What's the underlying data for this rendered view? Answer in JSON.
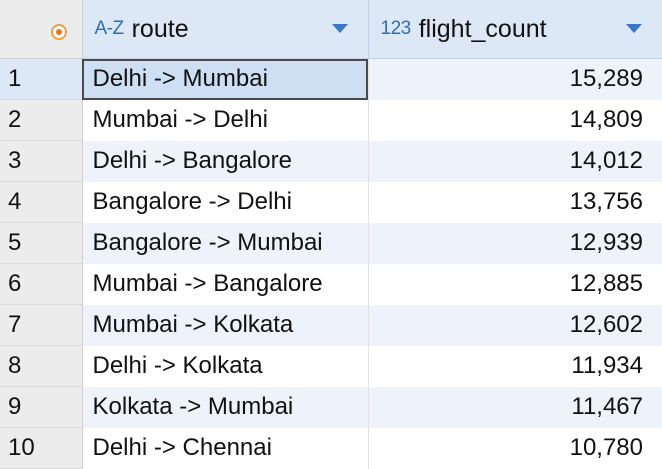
{
  "table": {
    "columns": [
      {
        "type_icon": "A-Z",
        "label": "route"
      },
      {
        "type_icon": "123",
        "label": "flight_count"
      }
    ],
    "rows": [
      {
        "index": "1",
        "route": "Delhi -> Mumbai",
        "flight_count": "15,289"
      },
      {
        "index": "2",
        "route": "Mumbai -> Delhi",
        "flight_count": "14,809"
      },
      {
        "index": "3",
        "route": "Delhi -> Bangalore",
        "flight_count": "14,012"
      },
      {
        "index": "4",
        "route": "Bangalore -> Delhi",
        "flight_count": "13,756"
      },
      {
        "index": "5",
        "route": "Bangalore -> Mumbai",
        "flight_count": "12,939"
      },
      {
        "index": "6",
        "route": "Mumbai -> Bangalore",
        "flight_count": "12,885"
      },
      {
        "index": "7",
        "route": "Mumbai -> Kolkata",
        "flight_count": "12,602"
      },
      {
        "index": "8",
        "route": "Delhi -> Kolkata",
        "flight_count": "11,934"
      },
      {
        "index": "9",
        "route": "Kolkata -> Mumbai",
        "flight_count": "11,467"
      },
      {
        "index": "10",
        "route": "Delhi -> Chennai",
        "flight_count": "10,780"
      }
    ]
  },
  "icons": {
    "corner": "select-all-radio-icon",
    "sort": "sort-dropdown-icon"
  },
  "colors": {
    "header_bg": "#dde8f6",
    "stripe_bg": "#eef3fb",
    "selection_bg": "#cfdff3",
    "type_icon": "#2f6db5",
    "sort_arrow": "#3a76c4",
    "corner_icon": "#e8751a"
  }
}
